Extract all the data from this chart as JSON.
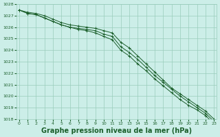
{
  "title": "Graphe pression niveau de la mer (hPa)",
  "x_hours": [
    0,
    1,
    2,
    3,
    4,
    5,
    6,
    7,
    8,
    9,
    10,
    11,
    12,
    13,
    14,
    15,
    16,
    17,
    18,
    19,
    20,
    21,
    22,
    23
  ],
  "line1": [
    1027.5,
    1027.2,
    1027.1,
    1026.8,
    1026.5,
    1026.2,
    1026.0,
    1025.8,
    1025.7,
    1025.5,
    1025.2,
    1024.9,
    1024.0,
    1023.5,
    1022.8,
    1022.2,
    1021.5,
    1020.9,
    1020.3,
    1019.7,
    1019.2,
    1018.8,
    1018.3,
    1017.6
  ],
  "line2": [
    1027.5,
    1027.2,
    1027.1,
    1026.8,
    1026.5,
    1026.2,
    1026.0,
    1025.9,
    1025.8,
    1025.7,
    1025.4,
    1025.2,
    1024.3,
    1023.8,
    1023.2,
    1022.5,
    1021.8,
    1021.2,
    1020.6,
    1020.0,
    1019.5,
    1019.0,
    1018.5,
    1017.8
  ],
  "line3": [
    1027.5,
    1027.3,
    1027.2,
    1027.0,
    1026.7,
    1026.4,
    1026.2,
    1026.1,
    1026.0,
    1025.9,
    1025.7,
    1025.5,
    1024.7,
    1024.2,
    1023.5,
    1022.8,
    1022.1,
    1021.4,
    1020.7,
    1020.2,
    1019.7,
    1019.2,
    1018.7,
    1018.0
  ],
  "bg_color": "#cceee8",
  "grid_color": "#99ccbb",
  "line_color": "#1a5e2a",
  "marker_color": "#1a5e2a",
  "text_color": "#1a5e2a",
  "ylim_min": 1018,
  "ylim_max": 1028,
  "ytick_step": 1,
  "title_fontsize": 7.0
}
